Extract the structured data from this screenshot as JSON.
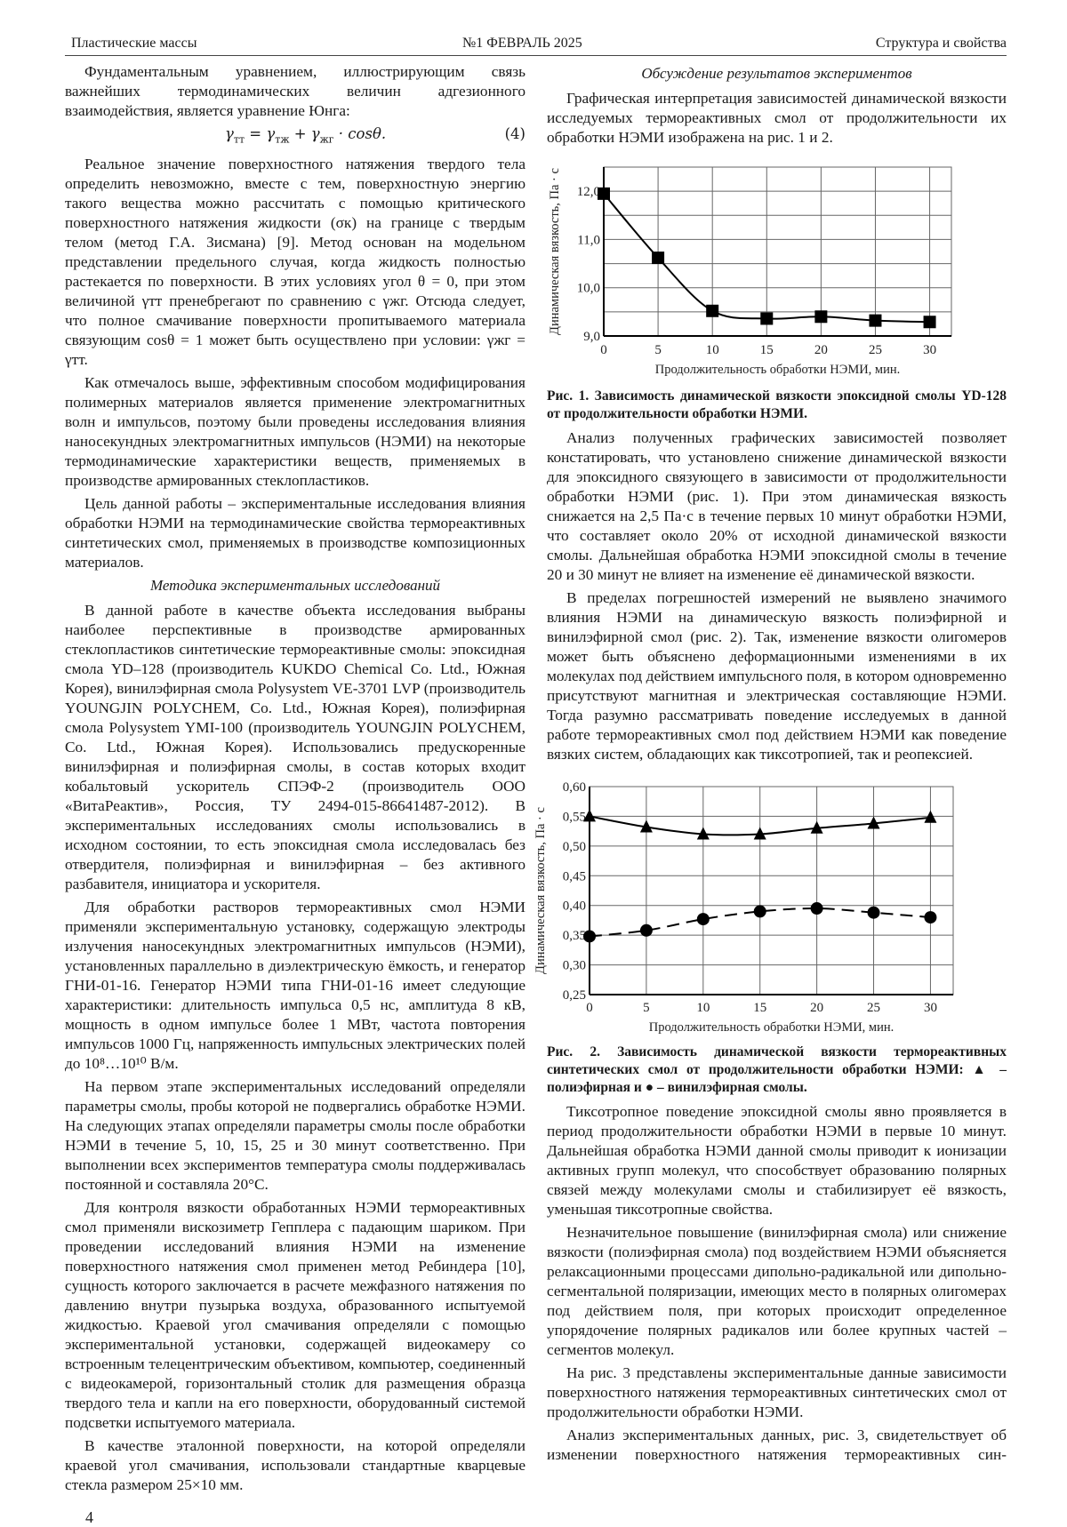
{
  "header": {
    "journal": "Пластические массы",
    "issue": "№1 ФЕВРАЛЬ 2025",
    "section": "Структура и свойства"
  },
  "page_number": "4",
  "left": {
    "p0": "Фундаментальным уравнением, иллюстрирующим связь важнейших термодинамических величин адгезионного взаимодействия, является уравнение Юнга:",
    "formula": {
      "g1": "γ",
      "s1": "тт",
      "eq": " = ",
      "g2": "γ",
      "s2": "тж",
      "plus": " + ",
      "g3": "γ",
      "s3": "жг",
      "tail": " · cosθ.",
      "number": "(4)"
    },
    "p1": "Реальное значение поверхностного натяжения твердого тела определить невозможно, вместе с тем, поверхностную энергию такого вещества можно рассчитать с помощью критического поверхностного натяжения жидкости (σк) на границе с твердым телом (метод Г.А. Зисмана) [9]. Метод основан на модельном представлении предельного случая, когда жидкость полностью растекается по поверхности. В этих условиях угол θ = 0, при этом величиной γтт пренебрегают по сравнению с γжг. Отсюда следует, что полное смачивание поверхности пропитываемого материала связующим cosθ = 1 может быть осуществлено при условии: γжг = γтт.",
    "p2": "Как отмечалось выше, эффективным способом модифицирования полимерных материалов является применение электромагнитных волн и импульсов, поэтому были проведены исследования влияния наносекундных электромагнитных импульсов (НЭМИ) на некоторые термодинамические характеристики веществ, применяемых в производстве армированных стеклопластиков.",
    "p3": "Цель данной работы – экспериментальные исследования влияния обработки НЭМИ на термодинамические свойства термореактивных синтетических смол, применяемых в производстве композиционных материалов.",
    "heading": "Методика экспериментальных исследований",
    "p4": "В данной работе в качестве объекта исследования выбраны наиболее перспективные в производстве армированных стеклопластиков синтетические термореактивные смолы: эпоксидная смола YD–128 (производитель KUKDO Chemical Co. Ltd., Южная Корея), винилэфирная смола Polysystem VE-3701 LVP (производитель YOUNGJIN POLYCHEM, Co. Ltd., Южная Корея), полиэфирная смола Polysystem YMI-100 (производитель YOUNGJIN POLYCHEM, Co. Ltd., Южная Корея). Использовались предускоренные винилэфирная и полиэфирная смолы, в состав которых входит кобальтовый ускоритель СПЭФ-2 (производитель ООО «ВитаРеактив», Россия, ТУ 2494-015-86641487-2012). В экспериментальных исследованиях смолы использовались в исходном состоянии, то есть эпоксидная смола исследовалась без отвердителя, полиэфирная и винилэфирная – без активного разбавителя, инициатора и ускорителя.",
    "p5": "Для обработки растворов термореактивных смол НЭМИ применяли экспериментальную установку, содержащую электроды излучения наносекундных электромагнитных импульсов (НЭМИ), установленных параллельно в диэлектрическую ёмкость, и генератор ГНИ-01-16. Генератор НЭМИ типа ГНИ-01-16 имеет следующие характеристики: длительность импульса 0,5 нс, амплитуда 8 кВ, мощность в одном импульсе более 1 МВт, частота повторения импульсов 1000 Гц, напряженность импульсных электрических полей до 10⁸…10¹⁰ В/м.",
    "p6": "На первом этапе экспериментальных исследований определяли параметры смолы, пробы которой не подвергались обработке НЭМИ. На следующих этапах определяли параметры смолы после обработки НЭМИ в течение 5, 10, 15, 25 и 30 минут соответственно. При выполнении всех экспериментов температура смолы поддерживалась постоянной и составляла 20°С.",
    "p7": "Для контроля вязкости обработанных НЭМИ термореактивных смол применяли вискозиметр Гепплера с падающим шариком. При проведении исследований влияния НЭМИ на изменение поверхностного натяжения смол применен метод Ребиндера [10], сущность которого заключается в расчете межфазного натяжения по давлению внутри пузырька воздуха, образованного испытуемой жидкостью. Краевой угол смачивания определяли с помощью экспериментальной установки, содержащей видеокамеру со встроенным телецентрическим объективом, компьютер, соединенный с видеокамерой, горизонтальный столик для размещения образца твердого тела и капли на его поверхности, оборудованный системой подсветки испытуемого материала.",
    "p8": "В качестве эталонной поверхности, на которой определяли краевой угол смачивания, использовали стандартные кварцевые стекла размером 25×10 мм."
  },
  "right": {
    "heading": "Обсуждение результатов экспериментов",
    "p0": "Графическая интерпретация зависимостей динамической вязкости исследуемых термореактивных смол от продолжительности их обработки НЭМИ изображена на рис. 1 и 2.",
    "caption1": "Рис. 1. Зависимость динамической вязкости эпоксидной смолы YD-128 от продолжительности обработки НЭМИ.",
    "p1": "Анализ полученных графических зависимостей позволяет констатировать, что установлено снижение динамической вязкости для эпоксидного связующего в зависимости от продолжительности обработки НЭМИ (рис. 1). При этом динамическая вязкость снижается на 2,5 Па·с в течение первых 10 минут обработки НЭМИ, что составляет около 20% от исходной динамической вязкости смолы. Дальнейшая обработка НЭМИ эпоксидной смолы в течение 20 и 30 минут не влияет на изменение её динамической вязкости.",
    "p2": "В пределах погрешностей измерений не выявлено значимого влияния НЭМИ на динамическую вязкость полиэфирной и винилэфирной смол (рис. 2). Так, изменение вязкости олигомеров может быть объяснено деформационными изменениями в их молекулах под действием импульсного поля, в котором одновременно присутствуют магнитная и электрическая составляющие НЭМИ. Тогда разумно рассматривать поведение исследуемых в данной работе термореактивных смол под действием НЭМИ как поведение вязких систем, обладающих как тиксотропией, так и реопексией.",
    "caption2": "Рис. 2. Зависимость динамической вязкости термореактивных синтетических смол от продолжительности обработки НЭМИ: ▲ – полиэфирная и ● – винилэфирная смолы.",
    "p3": "Тиксотропное поведение эпоксидной смолы явно проявляется в период продолжительности обработки НЭМИ в первые 10 минут. Дальнейшая обработка НЭМИ данной смолы приводит к ионизации активных групп молекул, что способствует образованию полярных связей между молекулами смолы и стабилизирует её вязкость, уменьшая тиксотропные свойства.",
    "p4": "Незначительное повышение (винилэфирная смола) или снижение вязкости (полиэфирная смола) под воздействием НЭМИ объясняется релаксационными процессами дипольно-радикальной или дипольно-сегментальной поляризации, имеющих место в полярных олигомерах под действием поля, при которых происходит определенное упорядочение полярных радикалов или более крупных частей – сегментов молекул.",
    "p5": "На рис. 3 представлены экспериментальные данные зависимости поверхностного натяжения термореактивных синтетических смол от продолжительности обработки НЭМИ.",
    "p6": "Анализ экспериментальных данных, рис. 3, свидетельствует об изменении поверхностного натяжения термореактивных син-"
  },
  "chart_data": [
    {
      "type": "line",
      "xlabel": "Продолжительность обработки НЭМИ, мин.",
      "ylabel": "Динамическая вязкость, Па · с",
      "x": [
        0,
        5,
        10,
        15,
        20,
        25,
        30
      ],
      "xticks": [
        "0",
        "5",
        "10",
        "15",
        "20",
        "25",
        "30"
      ],
      "yticks": [
        {
          "v": 9.0,
          "label": "9,0"
        },
        {
          "v": 10.0,
          "label": "10,0"
        },
        {
          "v": 11.0,
          "label": "11,0"
        },
        {
          "v": 12.0,
          "label": "12,0"
        }
      ],
      "xlim": [
        0,
        32
      ],
      "ylim": [
        9.0,
        12.5
      ],
      "grid": true,
      "ygrid_step": 0.5,
      "xgrid_step": 5,
      "series": [
        {
          "values": [
            11.95,
            10.62,
            9.52,
            9.36,
            9.4,
            9.32,
            9.29
          ],
          "marker": "square",
          "line": "solid",
          "color": "#000000"
        }
      ]
    },
    {
      "type": "line",
      "xlabel": "Продолжительность обработки НЭМИ, мин.",
      "ylabel": "Динамическая вязкость, Па · с",
      "x": [
        0,
        5,
        10,
        15,
        20,
        25,
        30
      ],
      "xticks": [
        "0",
        "5",
        "10",
        "15",
        "20",
        "25",
        "30"
      ],
      "yticks": [
        {
          "v": 0.25,
          "label": "0,25"
        },
        {
          "v": 0.3,
          "label": "0,30"
        },
        {
          "v": 0.35,
          "label": "0,35"
        },
        {
          "v": 0.4,
          "label": "0,40"
        },
        {
          "v": 0.45,
          "label": "0,45"
        },
        {
          "v": 0.5,
          "label": "0,50"
        },
        {
          "v": 0.55,
          "label": "0,55"
        },
        {
          "v": 0.6,
          "label": "0,60"
        }
      ],
      "xlim": [
        0,
        32
      ],
      "ylim": [
        0.25,
        0.6
      ],
      "grid": true,
      "ygrid_step": 0.05,
      "xgrid_step": 5,
      "series": [
        {
          "values": [
            0.55,
            0.532,
            0.52,
            0.52,
            0.53,
            0.538,
            0.548
          ],
          "marker": "triangle",
          "line": "solid",
          "color": "#000000"
        },
        {
          "values": [
            0.348,
            0.358,
            0.377,
            0.39,
            0.395,
            0.388,
            0.38
          ],
          "marker": "circle",
          "line": "dashed",
          "color": "#000000"
        }
      ]
    }
  ]
}
